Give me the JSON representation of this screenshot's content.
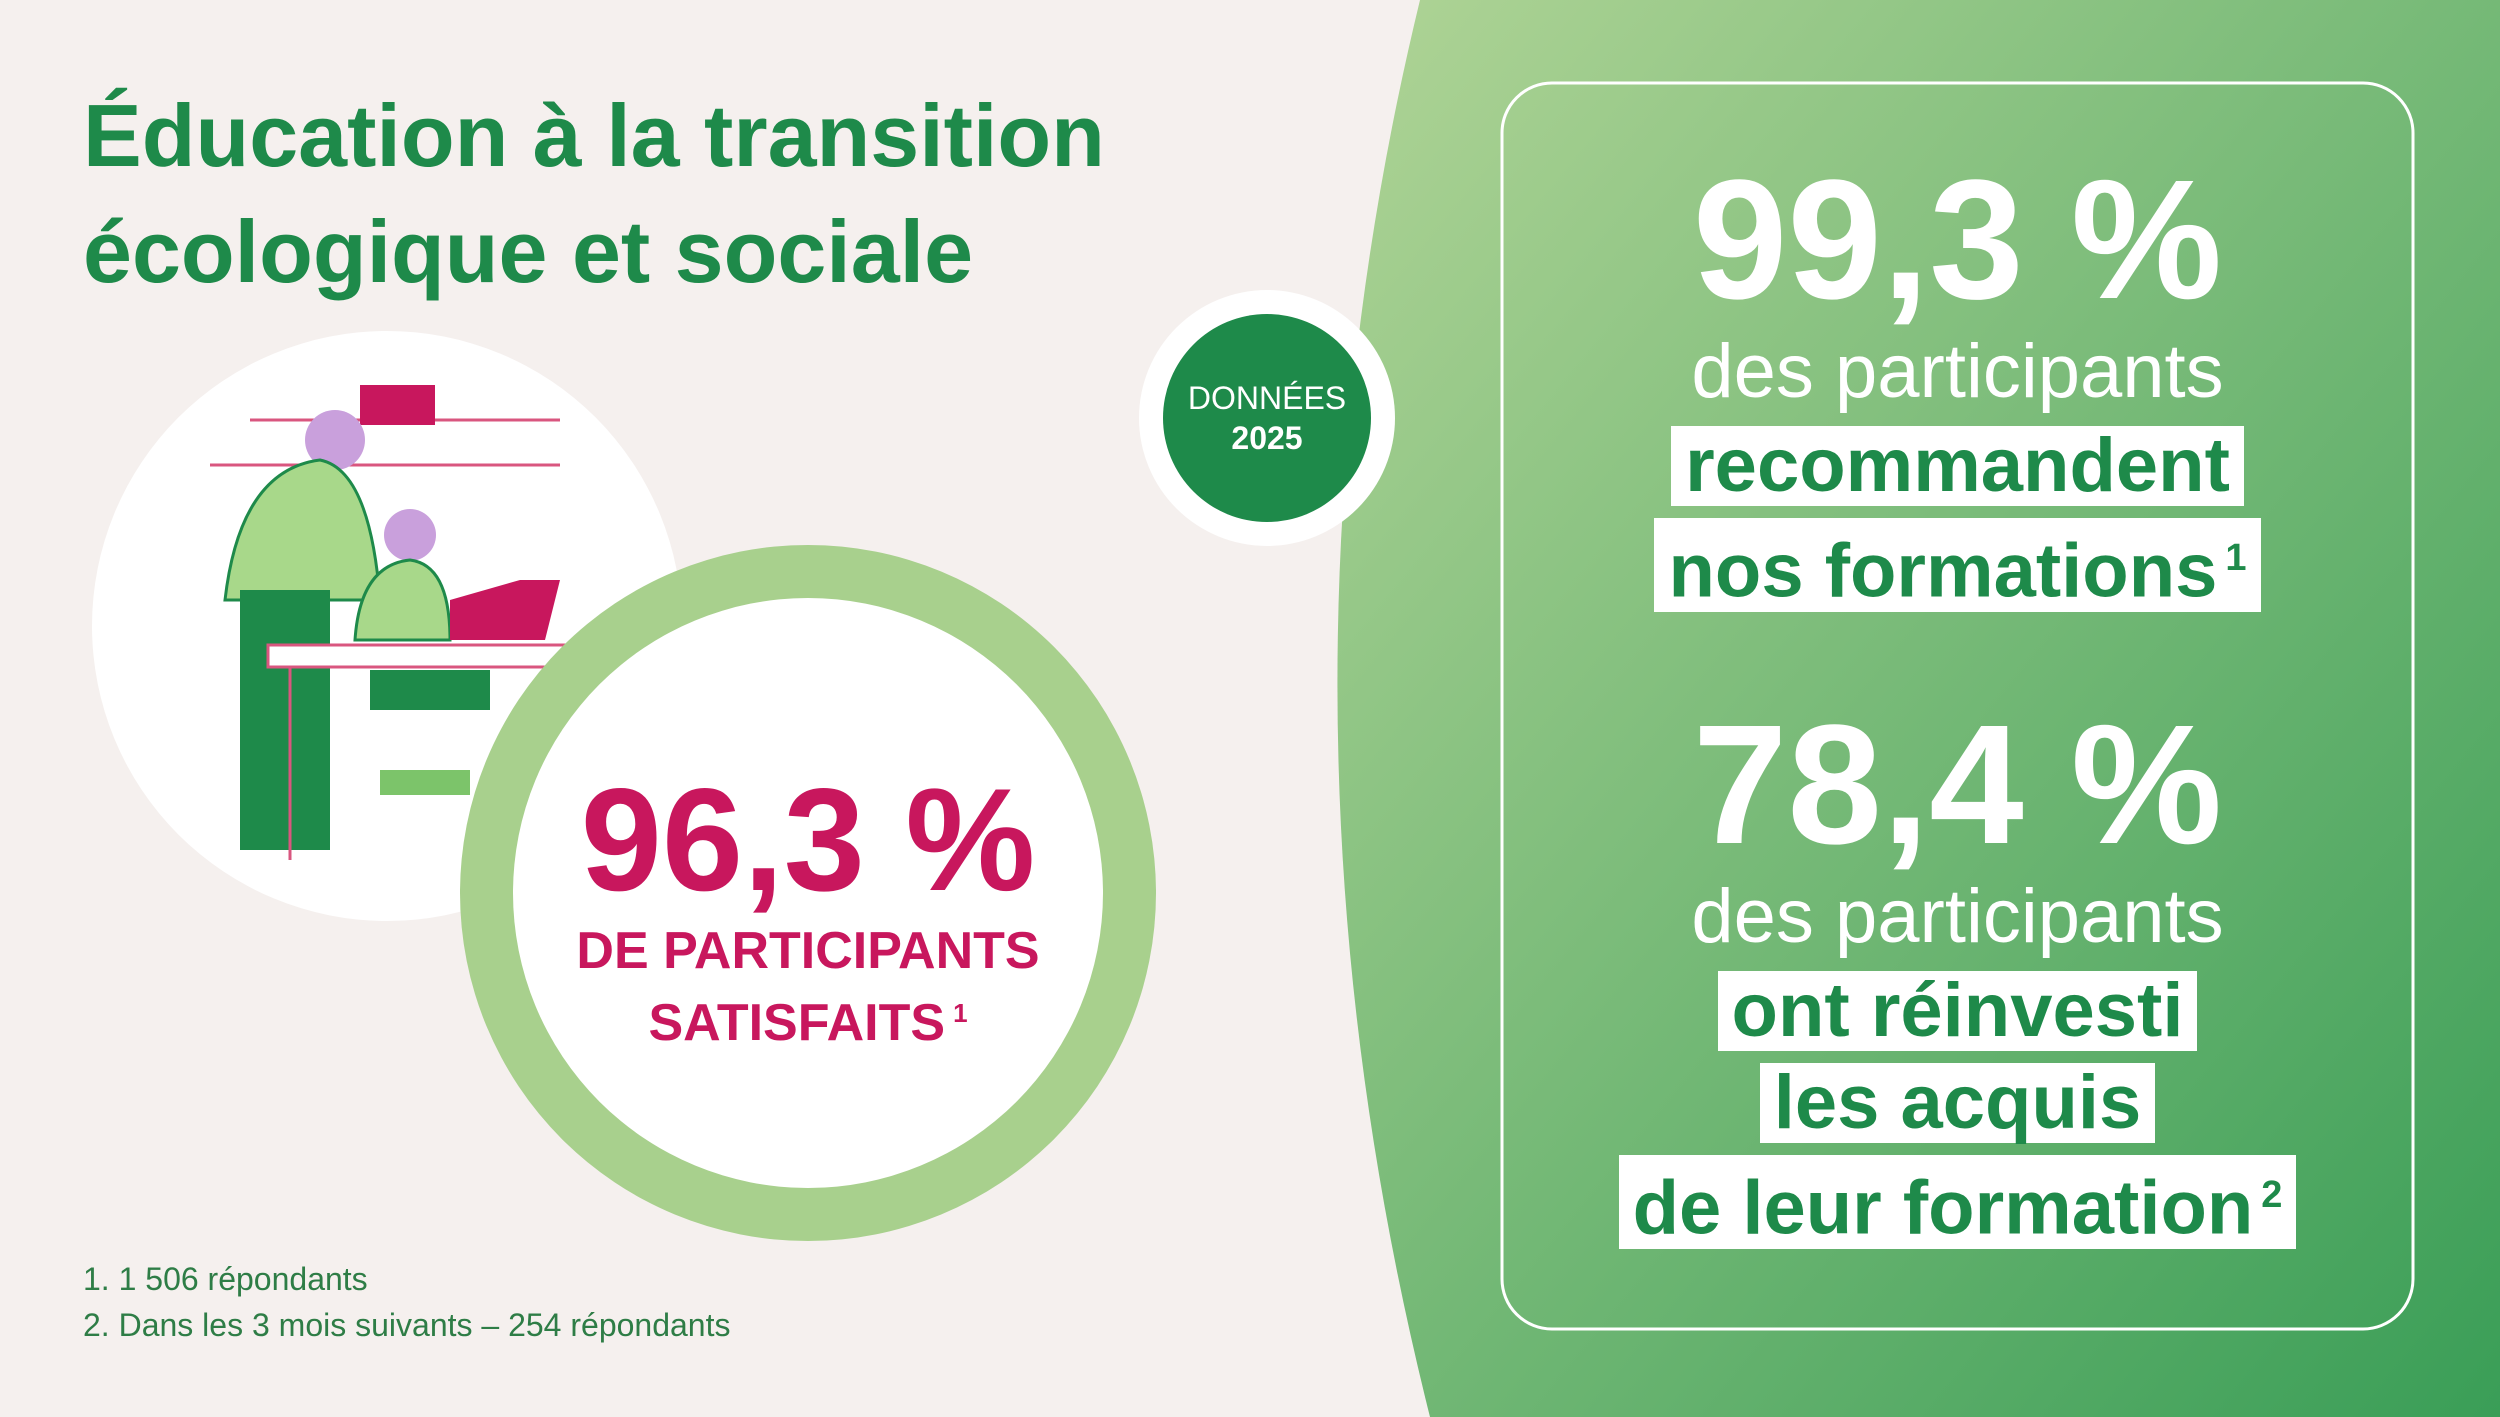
{
  "header": {
    "title_lines": [
      "Éducation à la transition",
      "écologique et sociale"
    ]
  },
  "badge": {
    "label": "DONNÉES",
    "year": "2025"
  },
  "highlight": {
    "value": "96,3 %",
    "lines": [
      "DE PARTICIPANTS",
      "SATISFAITS"
    ],
    "note": "1"
  },
  "stats": [
    {
      "value": "99,3 %",
      "intro": "des participants",
      "lines": [
        "recommandent",
        "nos formations"
      ],
      "note": "1"
    },
    {
      "value": "78,4 %",
      "intro": "des participants",
      "lines": [
        "ont réinvesti",
        "les acquis",
        "de leur formation"
      ],
      "note": "2"
    }
  ],
  "footnotes": [
    "1. 1 506 répondants",
    "2. Dans les 3 mois suivants – 254 répondants"
  ]
}
